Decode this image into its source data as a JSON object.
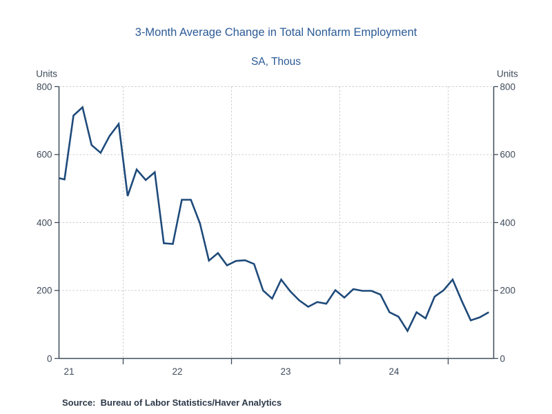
{
  "chart_data": {
    "type": "line",
    "title": "3-Month Average Change in Total Nonfarm Employment",
    "subtitle": "SA, Thous",
    "source": "Source:  Bureau of Labor Statistics/Haver Analytics",
    "y_axis": {
      "units_label_left": "Units",
      "units_label_right": "Units",
      "min": 0,
      "max": 800,
      "ticks": [
        800,
        600,
        400,
        200,
        0
      ]
    },
    "x_axis": {
      "year_labels": [
        "21",
        "22",
        "23",
        "24"
      ],
      "year_boundaries": [
        2022,
        2023,
        2024,
        2025
      ],
      "range_start": "2021-05",
      "range_end": "2025-05"
    },
    "grid": {
      "horizontal_at": [
        200,
        400,
        600,
        800
      ],
      "vertical_at_year_boundaries": true,
      "style": "dashed"
    },
    "colors": {
      "line": "#1e4a7a",
      "title_text": "#2a5a96",
      "axis_text": "#3e4a59",
      "axis_line": "#3e4a59",
      "gridline": "#cccccc",
      "source_text": "#2c3849"
    },
    "series": [
      {
        "name": "3-Month Average Change in Total Nonfarm Employment (SA, Thous)",
        "points": [
          [
            "2021-05",
            533
          ],
          [
            "2021-06",
            527
          ],
          [
            "2021-07",
            715
          ],
          [
            "2021-08",
            739
          ],
          [
            "2021-09",
            628
          ],
          [
            "2021-10",
            605
          ],
          [
            "2021-11",
            655
          ],
          [
            "2021-12",
            690
          ],
          [
            "2022-01",
            478
          ],
          [
            "2022-02",
            556
          ],
          [
            "2022-03",
            525
          ],
          [
            "2022-04",
            548
          ],
          [
            "2022-05",
            339
          ],
          [
            "2022-06",
            337
          ],
          [
            "2022-07",
            467
          ],
          [
            "2022-08",
            467
          ],
          [
            "2022-09",
            398
          ],
          [
            "2022-10",
            288
          ],
          [
            "2022-11",
            310
          ],
          [
            "2022-12",
            274
          ],
          [
            "2023-01",
            287
          ],
          [
            "2023-02",
            289
          ],
          [
            "2023-03",
            278
          ],
          [
            "2023-04",
            200
          ],
          [
            "2023-05",
            176
          ],
          [
            "2023-06",
            232
          ],
          [
            "2023-07",
            198
          ],
          [
            "2023-08",
            171
          ],
          [
            "2023-09",
            152
          ],
          [
            "2023-10",
            166
          ],
          [
            "2023-11",
            161
          ],
          [
            "2023-12",
            201
          ],
          [
            "2024-01",
            179
          ],
          [
            "2024-02",
            204
          ],
          [
            "2024-03",
            199
          ],
          [
            "2024-04",
            199
          ],
          [
            "2024-05",
            188
          ],
          [
            "2024-06",
            136
          ],
          [
            "2024-07",
            123
          ],
          [
            "2024-08",
            81
          ],
          [
            "2024-09",
            136
          ],
          [
            "2024-10",
            118
          ],
          [
            "2024-11",
            182
          ],
          [
            "2024-12",
            201
          ],
          [
            "2025-01",
            232
          ],
          [
            "2025-02",
            170
          ],
          [
            "2025-03",
            112
          ],
          [
            "2025-04",
            121
          ],
          [
            "2025-05",
            136
          ]
        ]
      }
    ]
  }
}
